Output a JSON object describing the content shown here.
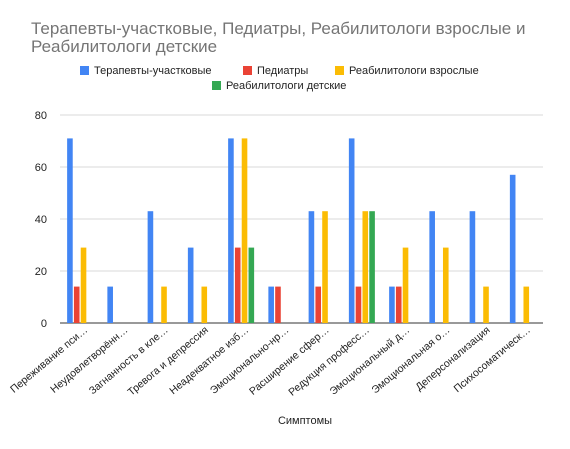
{
  "chart_data": {
    "type": "bar",
    "title": "Терапевты-участковые, Педиатры, Реабилитологи взрослые и Реабилитологи детские",
    "xlabel": "Симптомы",
    "ylabel": "",
    "ylim": [
      0,
      80
    ],
    "yticks": [
      0,
      20,
      40,
      60,
      80
    ],
    "grid": true,
    "legend_position": "top",
    "categories": [
      "Переживание пси…",
      "Неудовлетворённ…",
      "Загнанность в кле…",
      "Тревога и депрессия",
      "Неадекватное изб…",
      "Эмоционально-нр…",
      "Расширение сфер…",
      "Редукция професс…",
      "Эмоциональный д…",
      "Эмоциональная о…",
      "Деперсонализация",
      "Психосоматическ…"
    ],
    "series": [
      {
        "name": "Терапевты-участковые",
        "color": "#4285f4",
        "values": [
          71,
          14,
          43,
          29,
          71,
          14,
          43,
          71,
          14,
          43,
          43,
          57
        ]
      },
      {
        "name": "Педиатры",
        "color": "#ea4335",
        "values": [
          14,
          0,
          0,
          0,
          29,
          14,
          14,
          14,
          14,
          0,
          0,
          0
        ]
      },
      {
        "name": "Реабилитологи взрослые",
        "color": "#fbbc04",
        "values": [
          29,
          0,
          14,
          14,
          71,
          0,
          43,
          43,
          29,
          29,
          14,
          14
        ]
      },
      {
        "name": "Реабилитологи детские",
        "color": "#34a853",
        "values": [
          0,
          0,
          0,
          0,
          29,
          0,
          0,
          43,
          0,
          0,
          0,
          0
        ]
      }
    ]
  }
}
